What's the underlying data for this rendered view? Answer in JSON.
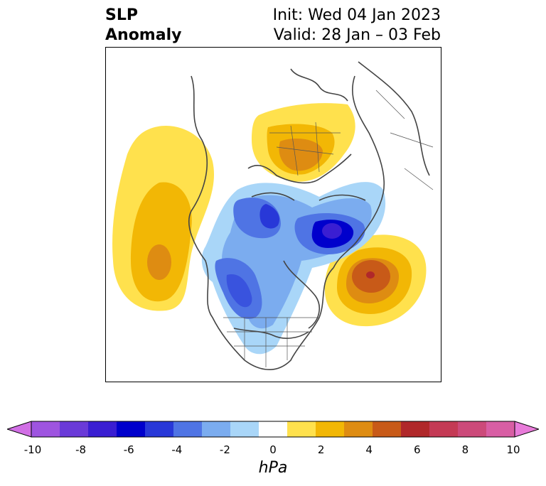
{
  "title": {
    "left_line1": "SLP",
    "left_line2": "Anomaly",
    "right_line1": "Init: Wed 04 Jan 2023",
    "right_line2": "Valid: 28 Jan – 03 Feb"
  },
  "colorbar": {
    "units": "hPa",
    "min": -10,
    "max": 10,
    "ticks": [
      "-10",
      "-8",
      "-6",
      "-4",
      "-2",
      "0",
      "2",
      "4",
      "6",
      "8",
      "10"
    ],
    "colors": [
      "#d16fe5",
      "#9e54e0",
      "#6a3ad8",
      "#3a1ed2",
      "#0000cc",
      "#2838d8",
      "#4f74e4",
      "#7bacef",
      "#a9d6f8",
      "#ffffff",
      "#ffe14d",
      "#f2b705",
      "#de8c12",
      "#c85a18",
      "#b0282a",
      "#c43a55",
      "#cc4a7a",
      "#d85ea4",
      "#e87bd9"
    ]
  },
  "map": {
    "projection": "north-polar-stereographic",
    "features": [
      {
        "name": "north-pacific-high",
        "sign": "positive",
        "peak": 4
      },
      {
        "name": "siberia-high",
        "sign": "positive",
        "peak": 4
      },
      {
        "name": "north-atlantic-high",
        "sign": "positive",
        "peak": 6
      },
      {
        "name": "arctic-low",
        "sign": "negative",
        "peak": -6
      },
      {
        "name": "greenland-low",
        "sign": "negative",
        "peak": -7
      },
      {
        "name": "north-america-low",
        "sign": "negative",
        "peak": -4
      }
    ]
  }
}
